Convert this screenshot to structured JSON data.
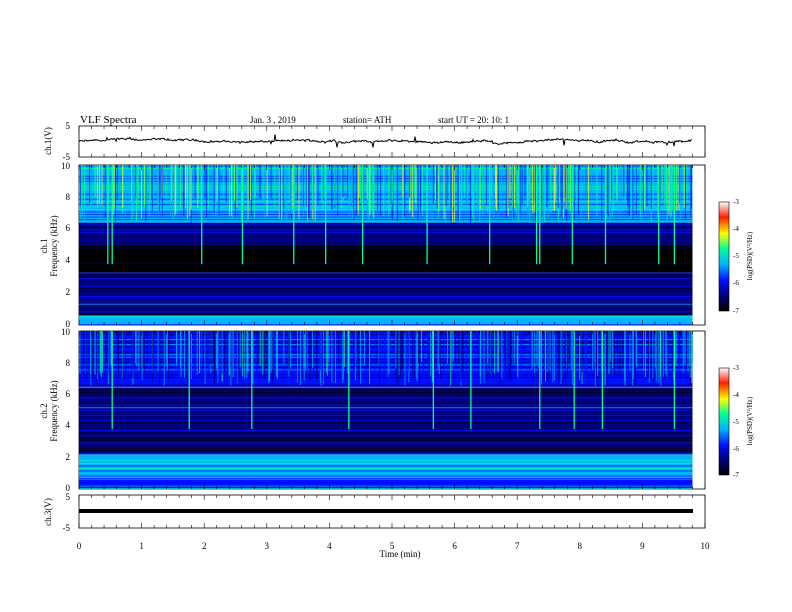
{
  "header": {
    "title": "VLF  Spectra",
    "date": "Jan.  3  , 2019",
    "station": "station= ATH",
    "start_ut": "start  UT  =    20: 10: 1"
  },
  "chart_data": [
    {
      "type": "line",
      "name": "ch1-waveform",
      "ylabel": "ch.1(V)",
      "ylim": [
        -5,
        5
      ],
      "yticks": [
        "5",
        "-5"
      ],
      "xlim": [
        0,
        10
      ],
      "mean_level": 0,
      "trace_color": "#000000"
    },
    {
      "type": "heatmap",
      "name": "ch1-spectrogram",
      "ylabel": "ch.1",
      "ylabel2": "Frequency  (kHz)",
      "ylim": [
        0,
        10
      ],
      "yticks": [
        "0",
        "2",
        "4",
        "6",
        "8",
        "10"
      ],
      "xlim": [
        0,
        9.8
      ],
      "colorbar": {
        "label": "log(PSD)(V²/Hz)",
        "range": [
          -7,
          -3
        ],
        "ticks": [
          "-3",
          "-4",
          "-5",
          "-6",
          "-7"
        ]
      },
      "bands": [
        {
          "from": 0,
          "to": 0.6,
          "level": -5.2
        },
        {
          "from": 0.6,
          "to": 3.3,
          "level": -6.1
        },
        {
          "from": 3.3,
          "to": 5.0,
          "level": -6.7
        },
        {
          "from": 5.0,
          "to": 6.4,
          "level": -6.2
        },
        {
          "from": 6.4,
          "to": 10,
          "level": -5.4
        }
      ],
      "bursts_min": [
        0.45,
        0.52,
        1.95,
        2.6,
        3.42,
        3.93,
        4.52,
        5.55,
        6.55,
        7.3,
        7.35,
        7.87,
        8.4,
        9.25,
        9.5
      ]
    },
    {
      "type": "heatmap",
      "name": "ch2-spectrogram",
      "ylabel": "ch.2",
      "ylabel2": "Frequency  (kHz)",
      "ylim": [
        0,
        10
      ],
      "yticks": [
        "0",
        "2",
        "4",
        "6",
        "8",
        "10"
      ],
      "xlim": [
        0,
        9.8
      ],
      "colorbar": {
        "label": "log(PSD)(V²/Hz)",
        "range": [
          -7,
          -3
        ],
        "ticks": [
          "-3",
          "-4",
          "-5",
          "-6",
          "-7"
        ]
      },
      "bands": [
        {
          "from": 0,
          "to": 0.6,
          "level": -5.6
        },
        {
          "from": 0.6,
          "to": 2.2,
          "level": -5.4
        },
        {
          "from": 2.2,
          "to": 3.4,
          "level": -6.2
        },
        {
          "from": 3.4,
          "to": 5.0,
          "level": -6.3
        },
        {
          "from": 5.0,
          "to": 6.5,
          "level": -6.1
        },
        {
          "from": 6.5,
          "to": 10,
          "level": -6.0
        }
      ],
      "bursts_min": [
        0.52,
        1.75,
        2.75,
        4.3,
        5.65,
        6.25,
        7.35,
        7.9,
        8.35,
        9.5
      ]
    },
    {
      "type": "line",
      "name": "ch3-waveform",
      "ylabel": "ch.3(V)",
      "ylim": [
        -5,
        5
      ],
      "yticks": [
        "5",
        "-5"
      ],
      "xlim": [
        0,
        10
      ],
      "mean_level": 0,
      "trace_color": "#000000"
    }
  ],
  "x_axis": {
    "label": "Time  (min)",
    "ticks": [
      "0",
      "1",
      "2",
      "3",
      "4",
      "5",
      "6",
      "7",
      "8",
      "9",
      "10"
    ],
    "range": [
      0,
      10
    ]
  },
  "colormap": [
    "#000000",
    "#00007a",
    "#0010ff",
    "#00b4ff",
    "#00ff96",
    "#ffff00",
    "#ff2000",
    "#ffffff"
  ]
}
